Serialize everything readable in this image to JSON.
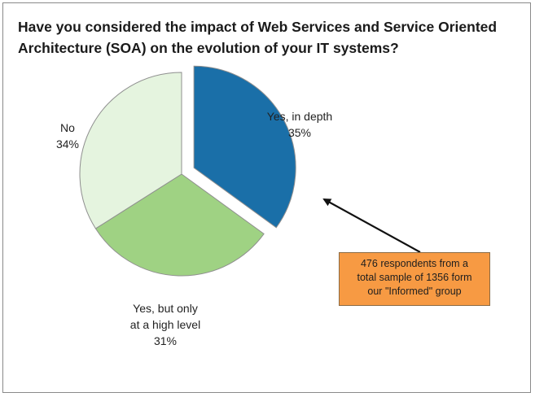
{
  "chart_data": {
    "type": "pie",
    "title": "Have you considered the impact of Web Services and Service Oriented Architecture (SOA) on the evolution of your IT systems?",
    "slices": [
      {
        "label": "Yes, in depth",
        "label_lines": [
          "Yes, in depth"
        ],
        "value": 35,
        "value_label": "35%",
        "color": "#1a6fa8",
        "exploded": true
      },
      {
        "label": "Yes, but only at a high level",
        "label_lines": [
          "Yes, but only",
          "at a high level"
        ],
        "value": 31,
        "value_label": "31%",
        "color": "#9fd283",
        "exploded": false
      },
      {
        "label": "No",
        "label_lines": [
          "No"
        ],
        "value": 34,
        "value_label": "34%",
        "color": "#e5f4df",
        "exploded": false
      }
    ],
    "annotation": {
      "text": "476 respondents from a total sample of 1356 form our \"Informed\" group",
      "lines": [
        "476 respondents from a",
        "total sample of 1356 form",
        "our \"Informed\" group"
      ],
      "color": "#f79a43"
    }
  }
}
